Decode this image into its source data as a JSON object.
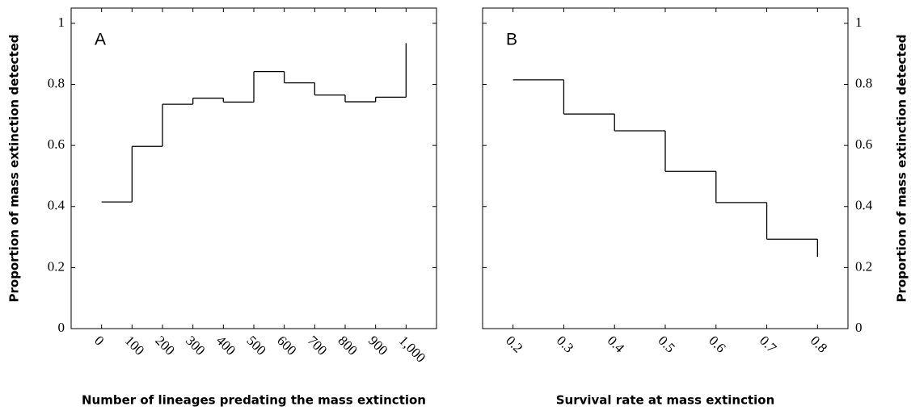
{
  "chart_data": [
    {
      "type": "step",
      "panel_label": "A",
      "x_label": "Number of lineages predating the mass extinction",
      "y_label": "Proportion of mass extinction detected",
      "x": [
        0,
        100,
        200,
        300,
        400,
        500,
        600,
        700,
        800,
        900,
        1000
      ],
      "values": [
        0.415,
        0.597,
        0.735,
        0.755,
        0.742,
        0.842,
        0.805,
        0.765,
        0.743,
        0.758,
        0.935
      ],
      "color": "#000000",
      "xlim": [
        -100,
        1100
      ],
      "ylim": [
        0,
        1.05
      ],
      "xticks": [
        0,
        100,
        200,
        300,
        400,
        500,
        600,
        700,
        800,
        900,
        {
          "value": 1000,
          "label": "1,000"
        }
      ],
      "yticks": [
        0,
        0.2,
        0.4,
        0.6,
        0.8,
        1
      ],
      "y_axis_side": "left"
    },
    {
      "type": "step",
      "panel_label": "B",
      "x_label": "Survival rate at mass extinction",
      "y_label": "Proportion of mass extinction detected",
      "x": [
        0.2,
        0.3,
        0.4,
        0.5,
        0.6,
        0.7,
        0.8
      ],
      "values": [
        0.815,
        0.703,
        0.648,
        0.515,
        0.413,
        0.293,
        0.235
      ],
      "color": "#000000",
      "xlim": [
        0.14,
        0.86
      ],
      "ylim": [
        0,
        1.05
      ],
      "xticks": [
        0.2,
        0.3,
        0.4,
        0.5,
        0.6,
        0.7,
        0.8
      ],
      "yticks": [
        0,
        0.2,
        0.4,
        0.6,
        0.8,
        1
      ],
      "y_axis_side": "right"
    }
  ]
}
